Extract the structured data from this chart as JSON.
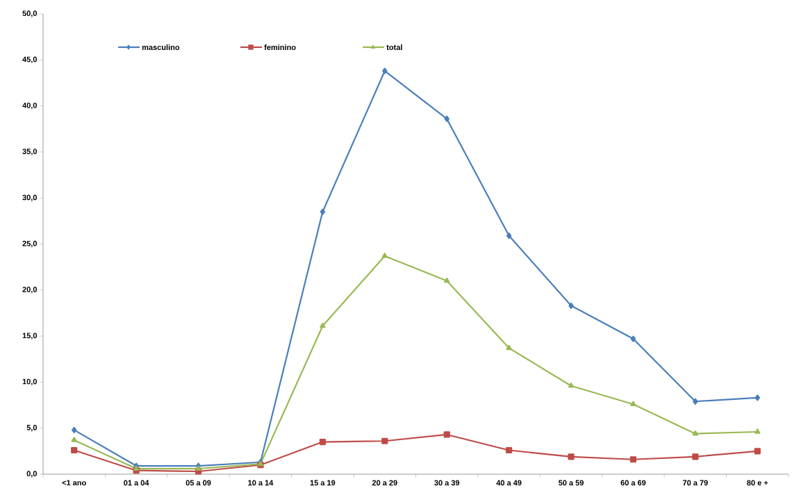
{
  "chart_data": {
    "type": "line",
    "categories": [
      "<1 ano",
      "01 a 04",
      "05 a 09",
      "10 a 14",
      "15 a 19",
      "20 a 29",
      "30 a 39",
      "40 a 49",
      "50 a 59",
      "60 a 69",
      "70 a 79",
      "80 e +"
    ],
    "series": [
      {
        "name": "masculino",
        "color": "#4a7ebb",
        "marker": "diamond",
        "values": [
          4.8,
          0.9,
          0.9,
          1.3,
          28.5,
          43.8,
          38.6,
          25.9,
          18.3,
          14.7,
          7.9,
          8.3
        ]
      },
      {
        "name": "feminino",
        "color": "#be4b48",
        "marker": "square",
        "values": [
          2.6,
          0.4,
          0.3,
          1.0,
          3.5,
          3.6,
          4.3,
          2.6,
          1.9,
          1.6,
          1.9,
          2.5
        ]
      },
      {
        "name": "total",
        "color": "#98b954",
        "marker": "triangle",
        "values": [
          3.7,
          0.6,
          0.6,
          1.1,
          16.1,
          23.7,
          21.0,
          13.7,
          9.6,
          7.6,
          4.4,
          4.6
        ]
      }
    ],
    "ylim": [
      0,
      50
    ],
    "yticks": [
      {
        "value": 0,
        "label": "0,0"
      },
      {
        "value": 5,
        "label": "5,0"
      },
      {
        "value": 10,
        "label": "10,0"
      },
      {
        "value": 15,
        "label": "15,0"
      },
      {
        "value": 20,
        "label": "20,0"
      },
      {
        "value": 25,
        "label": "25,0"
      },
      {
        "value": 30,
        "label": "30,0"
      },
      {
        "value": 35,
        "label": "35,0"
      },
      {
        "value": 40,
        "label": "40,0"
      },
      {
        "value": 45,
        "label": "45,0"
      },
      {
        "value": 50,
        "label": "50,0"
      }
    ],
    "grid": false,
    "legend": "top left",
    "line_style": "solid"
  }
}
